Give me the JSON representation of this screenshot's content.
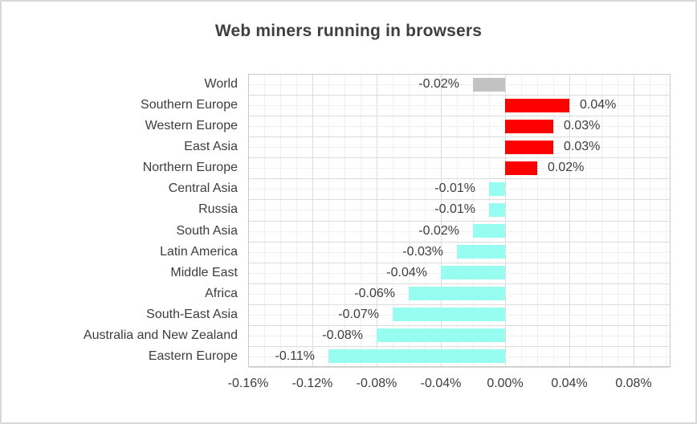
{
  "chart_data": {
    "type": "bar",
    "orientation": "horizontal",
    "title": "Web miners running in browsers",
    "unit": "%",
    "rows": [
      {
        "label": "World",
        "value": -0.02,
        "display": "-0.02%",
        "color": "#c2c2c2"
      },
      {
        "label": "Southern Europe",
        "value": 0.04,
        "display": "0.04%",
        "color": "#ff0000"
      },
      {
        "label": "Western Europe",
        "value": 0.03,
        "display": "0.03%",
        "color": "#ff0000"
      },
      {
        "label": "East Asia",
        "value": 0.03,
        "display": "0.03%",
        "color": "#ff0000"
      },
      {
        "label": "Northern Europe",
        "value": 0.02,
        "display": "0.02%",
        "color": "#ff0000"
      },
      {
        "label": "Central Asia",
        "value": -0.01,
        "display": "-0.01%",
        "color": "#97fdf1"
      },
      {
        "label": "Russia",
        "value": -0.01,
        "display": "-0.01%",
        "color": "#97fdf1"
      },
      {
        "label": "South Asia",
        "value": -0.02,
        "display": "-0.02%",
        "color": "#97fdf1"
      },
      {
        "label": "Latin America",
        "value": -0.03,
        "display": "-0.03%",
        "color": "#97fdf1"
      },
      {
        "label": "Middle East",
        "value": -0.04,
        "display": "-0.04%",
        "color": "#97fdf1"
      },
      {
        "label": "Africa",
        "value": -0.06,
        "display": "-0.06%",
        "color": "#97fdf1"
      },
      {
        "label": "South-East Asia",
        "value": -0.07,
        "display": "-0.07%",
        "color": "#97fdf1"
      },
      {
        "label": "Australia and New Zealand",
        "value": -0.08,
        "display": "-0.08%",
        "color": "#97fdf1"
      },
      {
        "label": "Eastern Europe",
        "value": -0.11,
        "display": "-0.11%",
        "color": "#97fdf1"
      }
    ],
    "x_axis": {
      "min": -0.16,
      "max": 0.103,
      "major_step": 0.04,
      "minor_step": 0.01,
      "ticks": [
        {
          "value": -0.16,
          "label": "-0.16%"
        },
        {
          "value": -0.12,
          "label": "-0.12%"
        },
        {
          "value": -0.08,
          "label": "-0.08%"
        },
        {
          "value": -0.04,
          "label": "-0.04%"
        },
        {
          "value": 0.0,
          "label": "0.00%"
        },
        {
          "value": 0.04,
          "label": "0.04%"
        },
        {
          "value": 0.08,
          "label": "0.08%"
        }
      ]
    },
    "grid": "major+minor",
    "legend": "none",
    "colors": {
      "positive": "#ff0000",
      "negative": "#97fdf1",
      "world": "#c2c2c2"
    }
  }
}
